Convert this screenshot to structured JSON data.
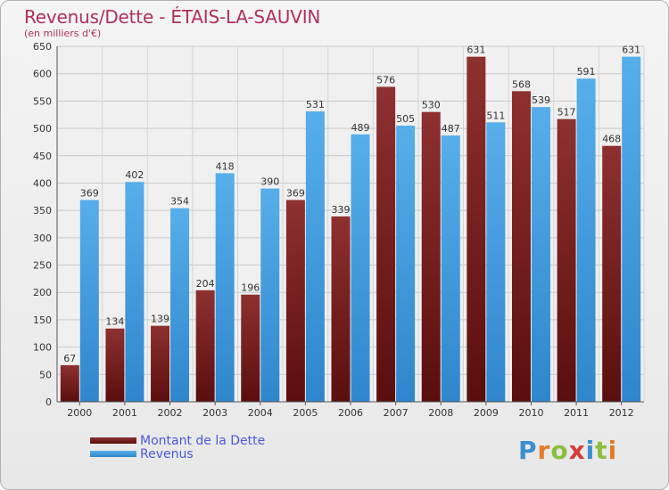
{
  "title": "Revenus/Dette - ÉTAIS-LA-SAUVIN",
  "subtitle": "(en milliers d'€)",
  "logo": {
    "letters": [
      "P",
      "r",
      "o",
      "x",
      "i",
      "t",
      "i"
    ],
    "colors": [
      "#3a8fd0",
      "#e57b2a",
      "#8cbf3f",
      "#d83a3a",
      "#3a8fd0",
      "#8cbf3f",
      "#e57b2a"
    ]
  },
  "colors": {
    "dette": "#7a1c1c",
    "revenus": "#3f9be0",
    "title": "#b03060",
    "legend_text": "#4a5ad8"
  },
  "legend": {
    "dette": "Montant de la Dette",
    "revenus": "Revenus"
  },
  "chart_data": {
    "type": "bar",
    "title": "Revenus/Dette - ÉTAIS-LA-SAUVIN",
    "ylabel": "(en milliers d'€)",
    "xlabel": "",
    "ylim": [
      0,
      650
    ],
    "yticks": [
      0,
      50,
      100,
      150,
      200,
      250,
      300,
      350,
      400,
      450,
      500,
      550,
      600,
      650
    ],
    "categories": [
      "2000",
      "2001",
      "2002",
      "2003",
      "2004",
      "2005",
      "2006",
      "2007",
      "2008",
      "2009",
      "2010",
      "2011",
      "2012"
    ],
    "series": [
      {
        "name": "Montant de la Dette",
        "values": [
          67,
          134,
          139,
          204,
          196,
          369,
          339,
          576,
          530,
          631,
          568,
          517,
          468
        ]
      },
      {
        "name": "Revenus",
        "values": [
          369,
          402,
          354,
          418,
          390,
          531,
          489,
          505,
          487,
          511,
          539,
          591,
          631
        ]
      }
    ],
    "grid": true,
    "legend": "bottom-left"
  }
}
